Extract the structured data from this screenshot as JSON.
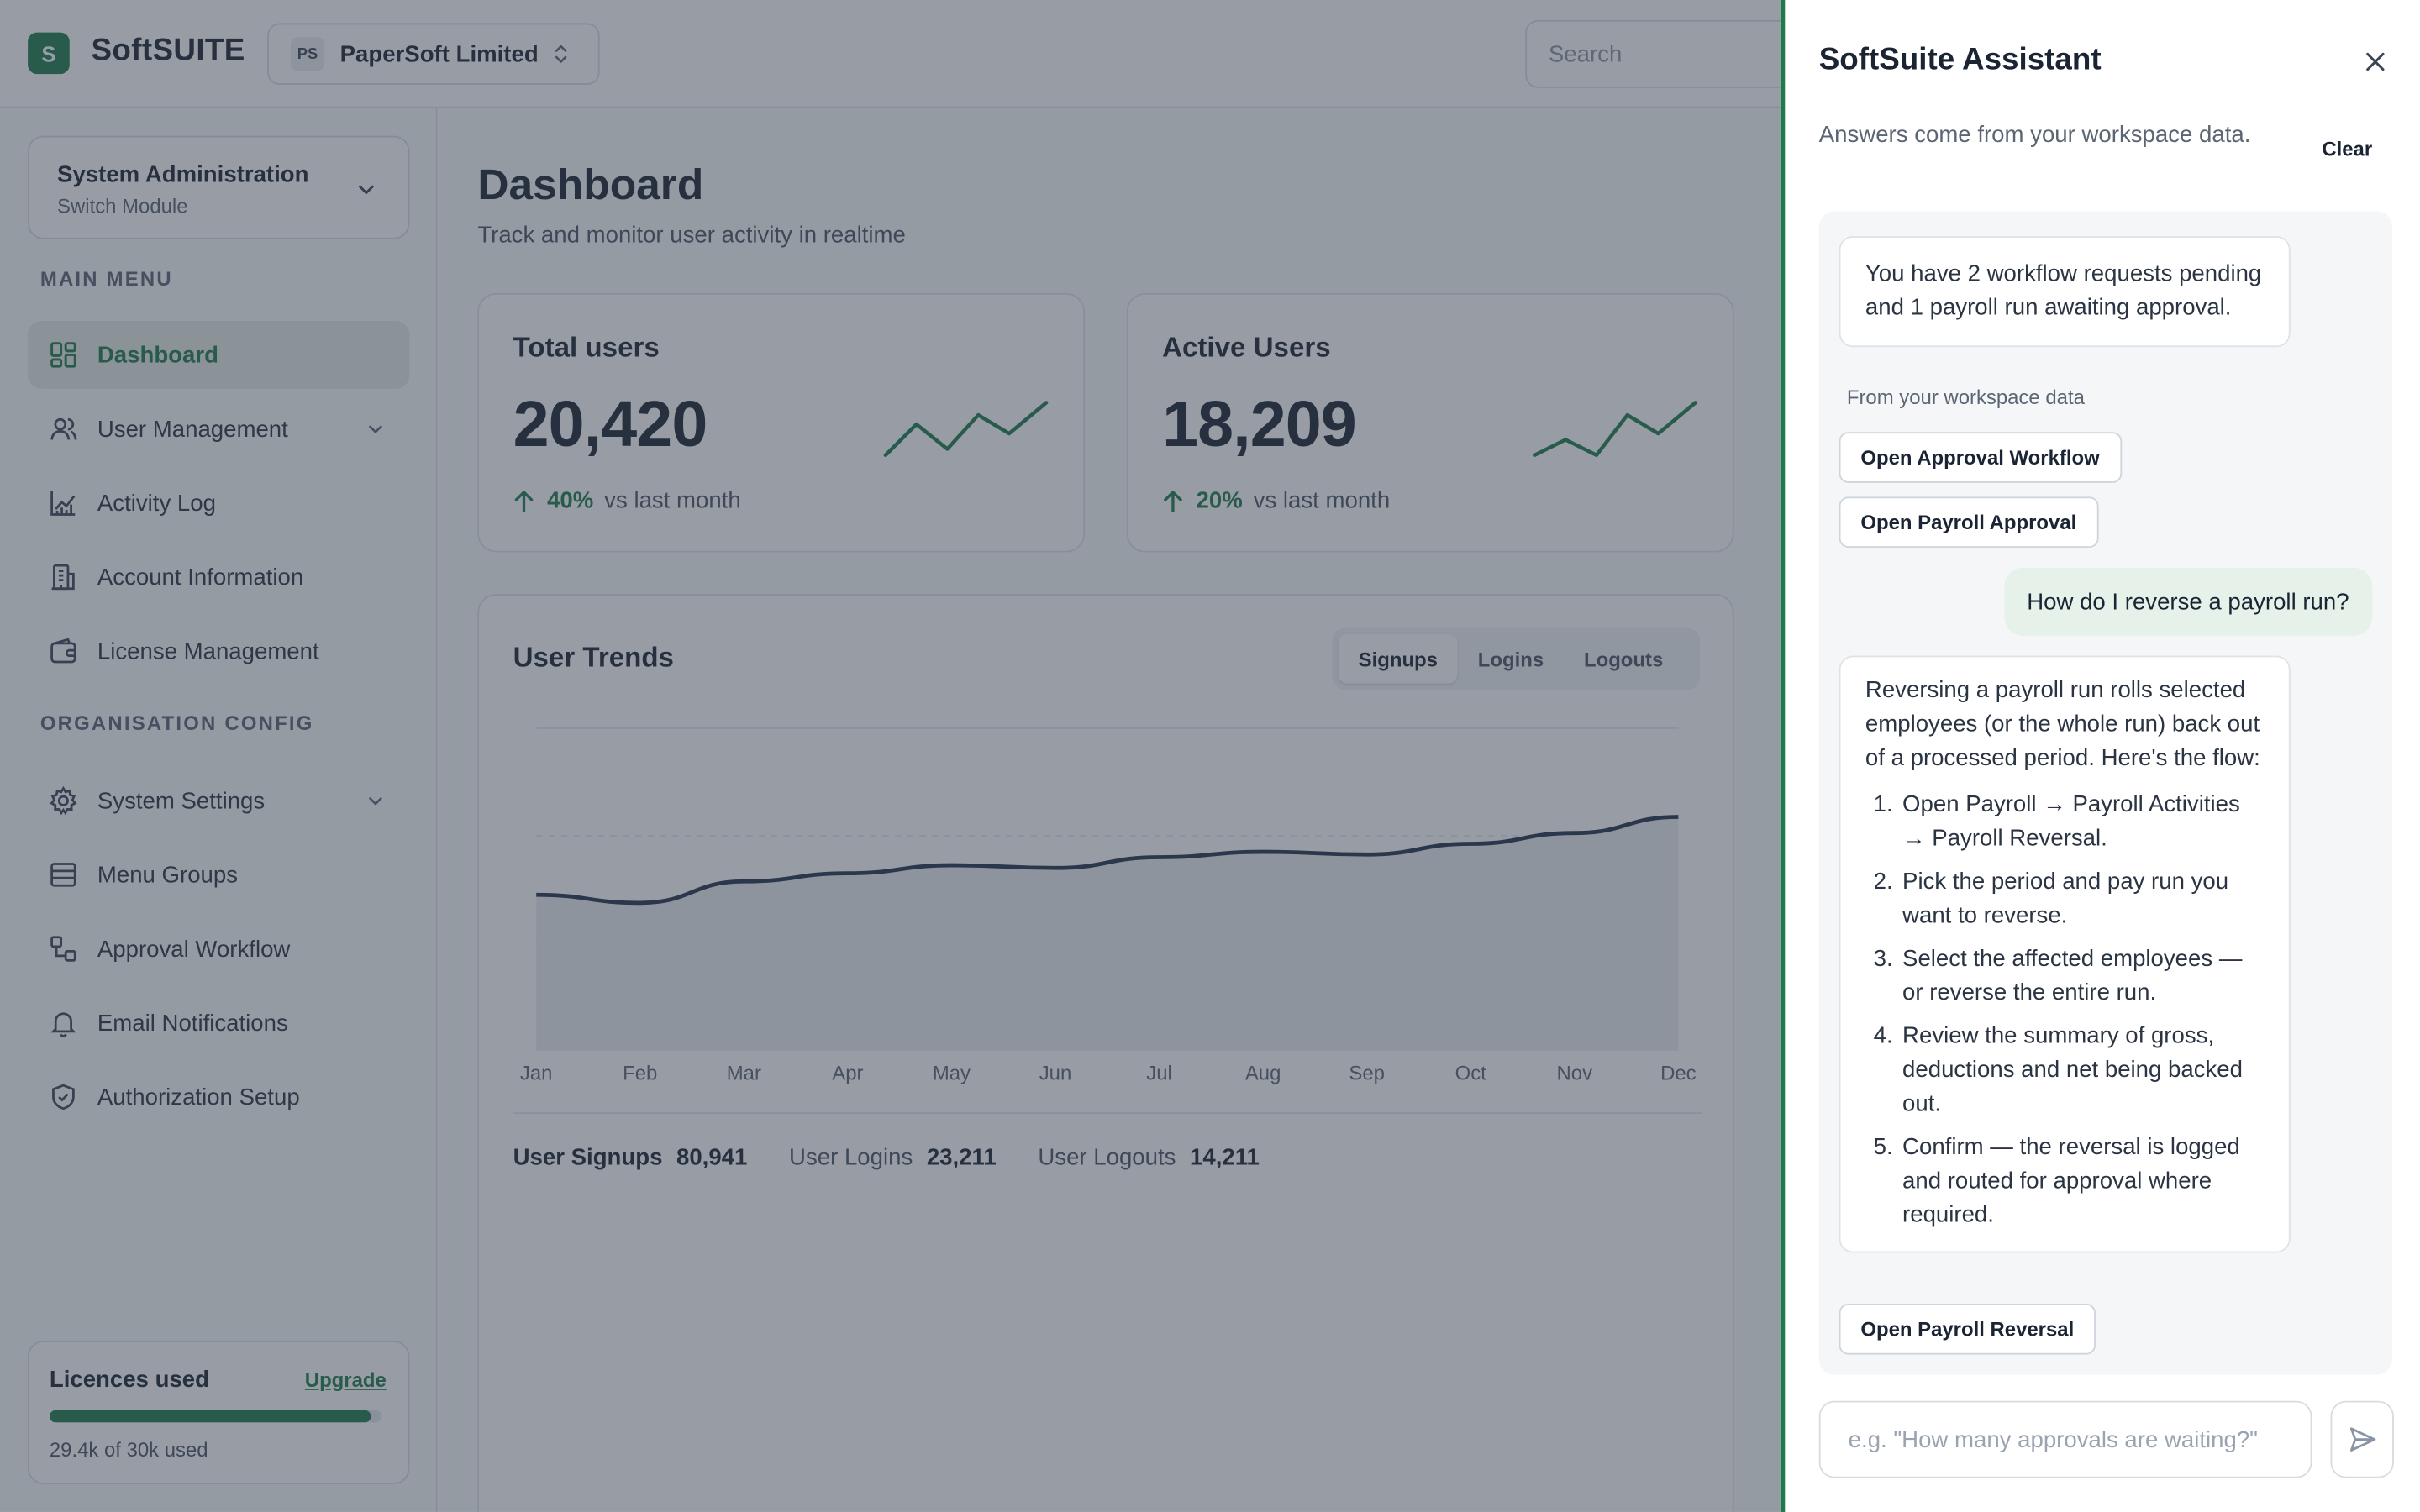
{
  "app": {
    "logo_letter": "S",
    "name": "SoftSUITE"
  },
  "org": {
    "initials": "PS",
    "name": "PaperSoft Limited"
  },
  "search": {
    "placeholder": "Search"
  },
  "module": {
    "title": "System Administration",
    "subtitle": "Switch Module"
  },
  "sidebar": {
    "main_menu_label": "MAIN MENU",
    "main_items": [
      {
        "label": "Dashboard",
        "icon": "dashboard-icon",
        "active": true
      },
      {
        "label": "User Management",
        "icon": "users-icon",
        "expandable": true
      },
      {
        "label": "Activity Log",
        "icon": "activity-icon"
      },
      {
        "label": "Account Information",
        "icon": "building-icon"
      },
      {
        "label": "License Management",
        "icon": "wallet-icon"
      }
    ],
    "config_label": "ORGANISATION CONFIG",
    "config_items": [
      {
        "label": "System Settings",
        "icon": "gear-icon",
        "expandable": true
      },
      {
        "label": "Menu Groups",
        "icon": "menu-groups-icon"
      },
      {
        "label": "Approval Workflow",
        "icon": "workflow-icon"
      },
      {
        "label": "Email Notifications",
        "icon": "bell-icon"
      },
      {
        "label": "Authorization Setup",
        "icon": "shield-icon"
      }
    ]
  },
  "licences": {
    "title": "Licences used",
    "upgrade": "Upgrade",
    "used_fraction": 0.967,
    "text": "29.4k of 30k used"
  },
  "dashboard": {
    "title": "Dashboard",
    "subtitle": "Track and monitor user activity in realtime",
    "stats": [
      {
        "title": "Total users",
        "value": "20,420",
        "delta": "40%",
        "delta_suffix": "vs last month"
      },
      {
        "title": "Active Users",
        "value": "18,209",
        "delta": "20%",
        "delta_suffix": "vs last month"
      }
    ],
    "trends": {
      "title": "User Trends",
      "tabs": [
        "Signups",
        "Logins",
        "Logouts"
      ],
      "active_tab": "Signups",
      "summary": [
        {
          "label": "User Signups",
          "value": "80,941"
        },
        {
          "label": "User Logins",
          "value": "23,211"
        },
        {
          "label": "User Logouts",
          "value": "14,211"
        }
      ]
    }
  },
  "chart_data": {
    "type": "area",
    "categories": [
      "Jan",
      "Feb",
      "Mar",
      "Apr",
      "May",
      "Jun",
      "Jul",
      "Aug",
      "Sep",
      "Oct",
      "Nov",
      "Dec"
    ],
    "values": [
      58,
      55,
      63,
      66,
      69,
      68,
      72,
      74,
      73,
      77,
      81,
      87
    ],
    "ylim": [
      0,
      120
    ],
    "grid": true
  },
  "assistant": {
    "title": "SoftSuite Assistant",
    "subtitle": "Answers come from your workspace data.",
    "clear": "Clear",
    "message1": "You have 2 workflow requests pending and 1 payroll run awaiting approval.",
    "source_note": "From your workspace data",
    "actions1": [
      "Open Approval Workflow",
      "Open Payroll Approval"
    ],
    "user_question": "How do I reverse a payroll run?",
    "answer_intro": "Reversing a payroll run rolls selected employees (or the whole run) back out of a processed period. Here's the flow:",
    "steps": [
      "Open Payroll → Payroll Activities → Payroll Reversal.",
      "Pick the period and pay run you want to reverse.",
      "Select the affected employees — or reverse the entire run.",
      "Review the summary of gross, deductions and net being backed out.",
      "Confirm — the reversal is logged and routed for approval where required."
    ],
    "action2": "Open Payroll Reversal",
    "input_placeholder": "e.g. \"How many approvals are waiting?\""
  },
  "colors": {
    "brand": "#1e7a4c",
    "chart_line": "#24344d",
    "scrim": "#323c4c"
  }
}
